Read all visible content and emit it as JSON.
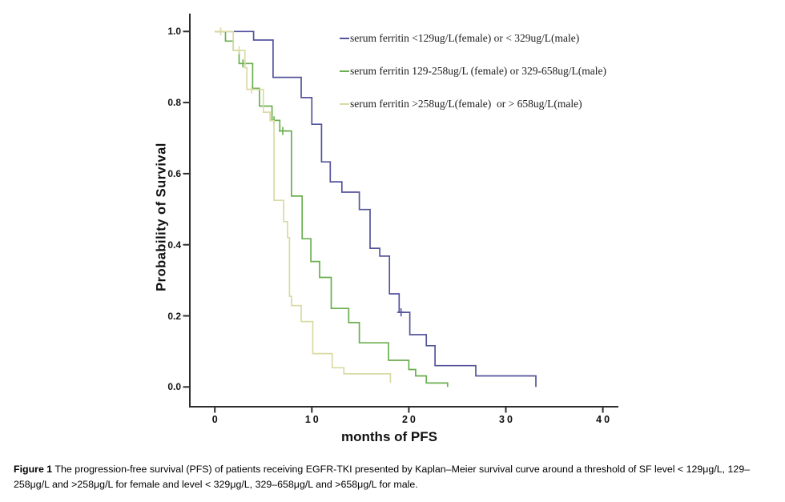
{
  "figure": {
    "caption_label": "Figure 1",
    "caption_text": "The progression-free survival (PFS) of patients receiving EGFR-TKI presented by Kaplan–Meier survival curve around a threshold of SF level < 129μg/L, 129–258μg/L and >258μg/L for female and level < 329μg/L, 329–658μg/L and >658μg/L for male."
  },
  "chart_data": {
    "type": "line",
    "subtype": "kaplan-meier-step-curve",
    "title": "",
    "xlabel": "months of PFS",
    "ylabel": "Probability of Survival",
    "xlim": [
      0,
      40
    ],
    "ylim": [
      0.0,
      1.0
    ],
    "x_ticks": [
      "0",
      "10",
      "20",
      "30",
      "40"
    ],
    "x_tick_values": [
      0,
      10,
      20,
      30,
      40
    ],
    "y_ticks": [
      "0.0",
      "0.2",
      "0.4",
      "0.6",
      "0.8",
      "1.0"
    ],
    "y_tick_values": [
      0.0,
      0.2,
      0.4,
      0.6,
      0.8,
      1.0
    ],
    "grid": false,
    "legend_position": "upper-right-inside",
    "axis_color": "#2e2e2e",
    "series": [
      {
        "name": "serum ferritin <129ug/L(female) or < 329ug/L(male)",
        "color": "#54549c",
        "steps": [
          [
            0,
            1.0
          ],
          [
            4.0,
            0.976
          ],
          [
            6.0,
            0.871
          ],
          [
            8.9,
            0.814
          ],
          [
            10.0,
            0.739
          ],
          [
            11.0,
            0.633
          ],
          [
            11.9,
            0.577
          ],
          [
            13.1,
            0.548
          ],
          [
            14.9,
            0.499
          ],
          [
            16.0,
            0.39
          ],
          [
            17.0,
            0.368
          ],
          [
            18.0,
            0.262
          ],
          [
            19.0,
            0.21
          ],
          [
            20.1,
            0.147
          ],
          [
            21.8,
            0.116
          ],
          [
            22.7,
            0.06
          ],
          [
            26.9,
            0.031
          ],
          [
            33.1,
            0.0
          ]
        ],
        "censored": [
          [
            19.2,
            0.21
          ]
        ]
      },
      {
        "name": "serum ferritin 129-258ug/L (female) or 329-658ug/L(male)",
        "color": "#6aaf4f",
        "steps": [
          [
            0,
            1.0
          ],
          [
            1.1,
            0.973
          ],
          [
            1.9,
            0.947
          ],
          [
            2.5,
            0.91
          ],
          [
            3.9,
            0.84
          ],
          [
            4.6,
            0.79
          ],
          [
            5.9,
            0.75
          ],
          [
            6.7,
            0.72
          ],
          [
            7.9,
            0.537
          ],
          [
            9.0,
            0.417
          ],
          [
            9.9,
            0.353
          ],
          [
            10.8,
            0.308
          ],
          [
            12.0,
            0.221
          ],
          [
            13.8,
            0.181
          ],
          [
            14.9,
            0.124
          ],
          [
            17.9,
            0.075
          ],
          [
            20.0,
            0.049
          ],
          [
            20.7,
            0.031
          ],
          [
            21.8,
            0.011
          ],
          [
            24.0,
            0.0
          ]
        ],
        "censored": [
          [
            2.9,
            0.91
          ],
          [
            6.1,
            0.75
          ],
          [
            7.0,
            0.72
          ]
        ]
      },
      {
        "name": "serum ferritin >258ug/L(female)  or > 658ug/L(male)",
        "color": "#d9daa4",
        "steps": [
          [
            0,
            1.0
          ],
          [
            1.9,
            0.947
          ],
          [
            3.1,
            0.898
          ],
          [
            3.3,
            0.837
          ],
          [
            5.0,
            0.773
          ],
          [
            5.7,
            0.749
          ],
          [
            6.1,
            0.525
          ],
          [
            7.1,
            0.465
          ],
          [
            7.5,
            0.42
          ],
          [
            7.7,
            0.255
          ],
          [
            7.9,
            0.229
          ],
          [
            8.9,
            0.184
          ],
          [
            10.1,
            0.094
          ],
          [
            12.1,
            0.054
          ],
          [
            13.3,
            0.037
          ],
          [
            18.1,
            0.012
          ]
        ],
        "censored": [
          [
            0.6,
            1.0
          ],
          [
            2.5,
            0.947
          ],
          [
            3.8,
            0.837
          ]
        ]
      }
    ]
  }
}
